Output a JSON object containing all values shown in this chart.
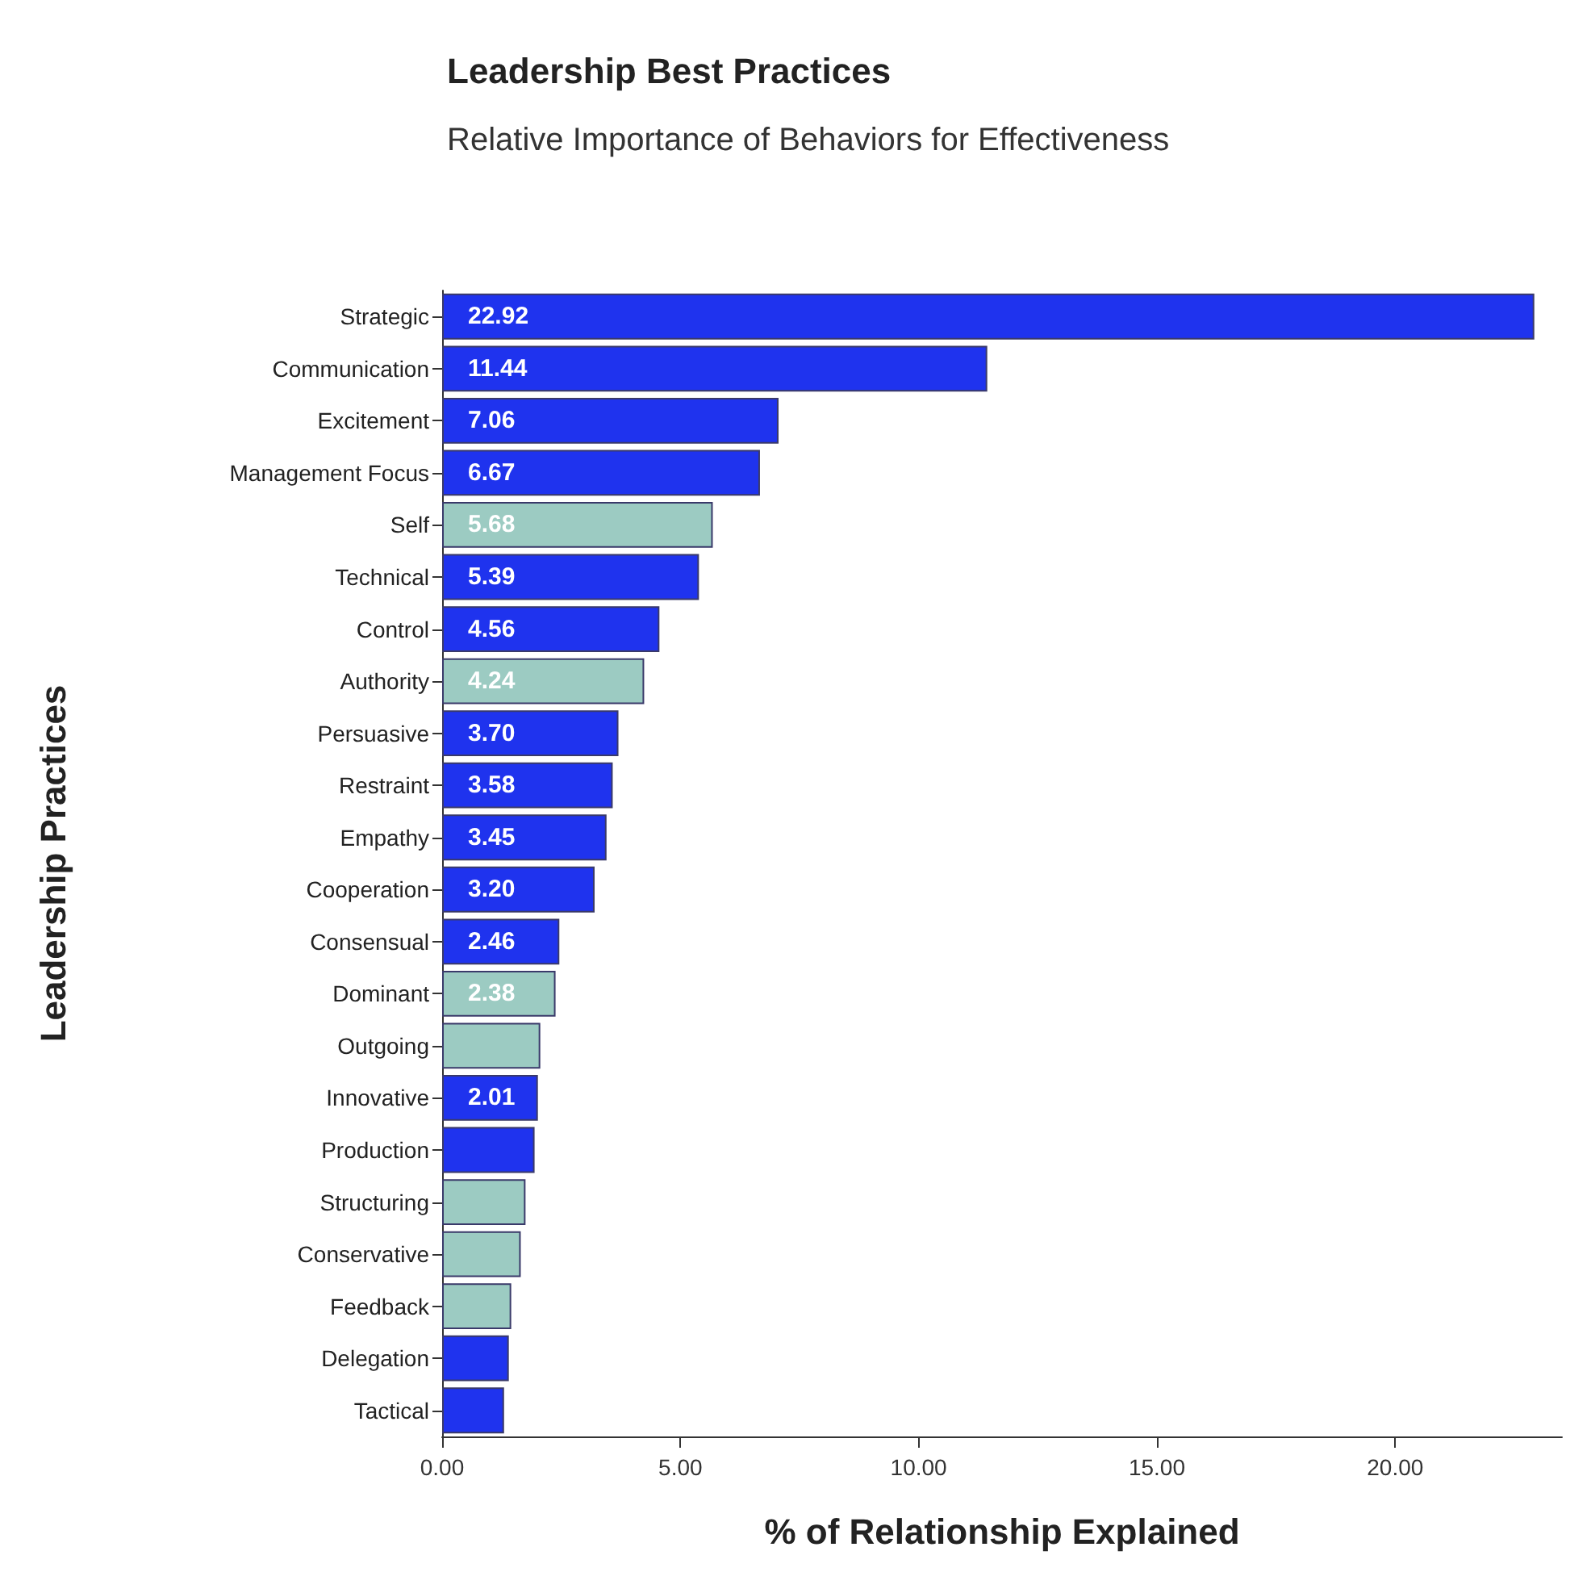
{
  "chart_data": {
    "type": "bar",
    "orientation": "horizontal",
    "title": "Leadership Best Practices",
    "subtitle": "Relative Importance of Behaviors for Effectiveness",
    "xlabel": "% of Relationship Explained",
    "ylabel": "Leadership Practices",
    "categories": [
      "Strategic",
      "Communication",
      "Excitement",
      "Management Focus",
      "Self",
      "Technical",
      "Control",
      "Authority",
      "Persuasive",
      "Restraint",
      "Empathy",
      "Cooperation",
      "Consensual",
      "Dominant",
      "Outgoing",
      "Innovative",
      "Production",
      "Structuring",
      "Conservative",
      "Feedback",
      "Delegation",
      "Tactical"
    ],
    "values": [
      22.92,
      11.44,
      7.06,
      6.67,
      5.68,
      5.39,
      4.56,
      4.24,
      3.7,
      3.58,
      3.45,
      3.2,
      2.46,
      2.38,
      2.06,
      2.01,
      1.94,
      1.75,
      1.65,
      1.45,
      1.4,
      1.3
    ],
    "value_labels": [
      "22.92",
      "11.44",
      "7.06",
      "6.67",
      "5.68",
      "5.39",
      "4.56",
      "4.24",
      "3.70",
      "3.58",
      "3.45",
      "3.20",
      "2.46",
      "2.38",
      null,
      "2.01",
      null,
      null,
      null,
      null,
      null,
      null
    ],
    "colors": [
      "#1f33ee",
      "#1f33ee",
      "#1f33ee",
      "#1f33ee",
      "#9ccbc2",
      "#1f33ee",
      "#1f33ee",
      "#9ccbc2",
      "#1f33ee",
      "#1f33ee",
      "#1f33ee",
      "#1f33ee",
      "#1f33ee",
      "#9ccbc2",
      "#9ccbc2",
      "#1f33ee",
      "#1f33ee",
      "#9ccbc2",
      "#9ccbc2",
      "#9ccbc2",
      "#1f33ee",
      "#1f33ee"
    ],
    "xlim": [
      0,
      23.5
    ],
    "xticks": [
      {
        "value": 0,
        "label": "0.00"
      },
      {
        "value": 5,
        "label": "5.00"
      },
      {
        "value": 10,
        "label": "10.00"
      },
      {
        "value": 15,
        "label": "15.00"
      },
      {
        "value": 20,
        "label": "20.00"
      }
    ],
    "grid": false
  }
}
